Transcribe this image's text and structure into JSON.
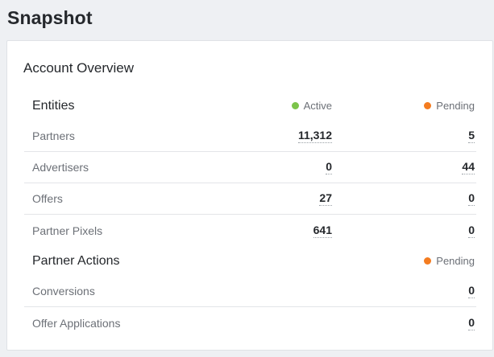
{
  "page": {
    "title": "Snapshot"
  },
  "card": {
    "title": "Account Overview"
  },
  "colors": {
    "active": "#7cc44a",
    "pending": "#f47c20"
  },
  "entities": {
    "header": "Entities",
    "active_label": "Active",
    "pending_label": "Pending",
    "rows": [
      {
        "label": "Partners",
        "active": "11,312",
        "pending": "5"
      },
      {
        "label": "Advertisers",
        "active": "0",
        "pending": "44"
      },
      {
        "label": "Offers",
        "active": "27",
        "pending": "0"
      },
      {
        "label": "Partner Pixels",
        "active": "641",
        "pending": "0"
      }
    ]
  },
  "partner_actions": {
    "header": "Partner Actions",
    "pending_label": "Pending",
    "rows": [
      {
        "label": "Conversions",
        "pending": "0"
      },
      {
        "label": "Offer Applications",
        "pending": "0"
      }
    ]
  }
}
